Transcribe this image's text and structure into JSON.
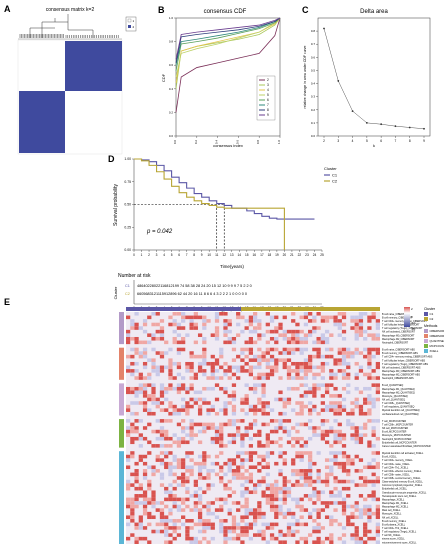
{
  "panels": {
    "A": {
      "letter": "A",
      "title": "consensus matrix k=2",
      "legend": [
        "1",
        "2"
      ]
    },
    "B": {
      "letter": "B",
      "title": "consensus CDF",
      "xlabel": "consensus index",
      "ylabel": "CDF",
      "xticks": [
        "0.0",
        "0.2",
        "0.4",
        "0.6",
        "0.8",
        "1.0"
      ],
      "yticks": [
        "0.0",
        "0.2",
        "0.4",
        "0.6",
        "0.8",
        "1.0"
      ],
      "legend": [
        "2",
        "3",
        "4",
        "5",
        "6",
        "7",
        "8",
        "9"
      ]
    },
    "C": {
      "letter": "C",
      "title": "Delta area",
      "xlabel": "k",
      "ylabel": "relative change in area under CDF curve"
    },
    "D": {
      "letter": "D",
      "ylabel": "Survival probability",
      "xlabel": "Time(years)",
      "pvalue": "p = 0.042",
      "legend_title": "Cluster",
      "legend": [
        "C1",
        "C2"
      ],
      "yticks": [
        "0.00",
        "0.25",
        "0.50",
        "0.75",
        "1.00"
      ],
      "risk_title": "Number at risk",
      "risk_ylabel": "Cluster",
      "risk_rows": [
        {
          "label": "C1",
          "text": "48640228022116812199 74 58 38 28 24 20 15 12 10 9 9 9 7 5 2 2 0"
        },
        {
          "label": "C2",
          "text": "6605683121115912896 62 44 20 16 11 8 6 6 4 3 2 2 2 1 0 0 0 0 0"
        }
      ]
    },
    "E": {
      "letter": "E",
      "legend": {
        "cluster_title": "Cluster",
        "clusters": [
          "C1",
          "C2"
        ],
        "methods_title": "Methods",
        "methods": [
          "CIBERSORT",
          "CIBERSORT-ABS",
          "QUANTISEQ",
          "MCPCOUNTER",
          "XCELL"
        ],
        "scale": [
          "2",
          "0",
          "-10",
          "-20"
        ]
      },
      "groups": [
        {
          "method": "CIBERSORT",
          "rows": [
            "B cell naive_CIBERSORT",
            "B cell memory_CIBERSORT",
            "T cell CD4+ memory resting_CIBERSORT",
            "T cell follicular helper_CIBERSORT",
            "T cell regulatory (Tregs)_CIBERSORT",
            "NK cell activated_CIBERSORT",
            "Macrophage M0_CIBERSORT",
            "Macrophage M2_CIBERSORT",
            "Neutrophil_CIBERSORT"
          ]
        },
        {
          "method": "CIBERSORT-ABS",
          "rows": [
            "B cell naive_CIBERSORT-ABS",
            "B cell memory_CIBERSORT-ABS",
            "T cell CD4+ memory resting_CIBERSORT-ABS",
            "T cell follicular helper_CIBERSORT-ABS",
            "T cell regulatory (Tregs)_CIBERSORT-ABS",
            "NK cell activated_CIBERSORT-ABS",
            "Macrophage M0_CIBERSORT-ABS",
            "Macrophage M2_CIBERSORT-ABS",
            "Neutrophil_CIBERSORT-ABS"
          ]
        },
        {
          "method": "QUANTISEQ",
          "rows": [
            "B cell_QUANTISEQ",
            "Macrophage M1_QUANTISEQ",
            "Macrophage M2_QUANTISEQ",
            "Monocyte_QUANTISEQ",
            "NK cell_QUANTISEQ",
            "T cell CD8+_QUANTISEQ",
            "T cell regulatory_QUANTISEQ",
            "Myeloid dendritic cell_QUANTISEQ",
            "uncharacterized cell_QUANTISEQ"
          ]
        },
        {
          "method": "MCPCOUNTER",
          "rows": [
            "T cell_MCPCOUNTER",
            "T cell CD8+_MCPCOUNTER",
            "NK cell_MCPCOUNTER",
            "B cell_MCPCOUNTER",
            "Monocyte_MCPCOUNTER",
            "Neutrophil_MCPCOUNTER",
            "Endothelial cell_MCPCOUNTER",
            "Cancer associated fibroblast_MCPCOUNTER"
          ]
        },
        {
          "method": "XCELL",
          "rows": [
            "Myeloid dendritic cell activated_XCELL",
            "B cell_XCELL",
            "T cell CD4+ memory_XCELL",
            "T cell CD4+ naive_XCELL",
            "T cell CD4+ Th1_XCELL",
            "T cell CD4+ effector memory_XCELL",
            "T cell CD8+ naive_XCELL",
            "T cell CD8+ central memory_XCELL",
            "Class-switched memory B cell_XCELL",
            "Common lymphoid progenitor_XCELL",
            "Endothelial cell_XCELL",
            "Granulocyte-monocyte progenitor_XCELL",
            "Hematopoietic stem cell_XCELL",
            "Macrophage_XCELL",
            "Macrophage M1_XCELL",
            "Macrophage M2_XCELL",
            "Mast cell_XCELL",
            "Monocyte_XCELL",
            "NK cell_XCELL",
            "B cell memory_XCELL",
            "B cell plasma_XCELL",
            "T cell CD4+ Th2_XCELL",
            "T cell regulatory (Tregs)_XCELL",
            "T cell NK_XCELL",
            "stroma score_XCELL",
            "microenvironment score_XCELL"
          ]
        }
      ]
    }
  },
  "colors": {
    "c1": "#5b57a6",
    "c2": "#b8a534",
    "consensus_blue": "#3f4a9e",
    "cibersort": "#b39ac8",
    "cibersort_abs": "#e3836a",
    "quantiseq": "#c8a9d4",
    "mcpcounter": "#7cb342",
    "xcell": "#5bb6d6",
    "cdf": [
      "#7a2e57",
      "#a9c75a",
      "#e3c44b",
      "#bdd26a",
      "#5aa05a",
      "#2f8a7c",
      "#2c3e7a",
      "#6a3d8f"
    ]
  },
  "chart_data": [
    {
      "type": "heatmap",
      "title": "consensus matrix k=2",
      "categories": [
        "1",
        "2"
      ],
      "values": [
        [
          1,
          0
        ],
        [
          0,
          1
        ]
      ]
    },
    {
      "type": "line",
      "title": "consensus CDF",
      "xlabel": "consensus index",
      "ylabel": "CDF",
      "xlim": [
        0,
        1
      ],
      "ylim": [
        0,
        1
      ],
      "x": [
        0,
        0.05,
        0.2,
        0.4,
        0.6,
        0.8,
        0.95,
        1
      ],
      "series": [
        {
          "name": "2",
          "values": [
            0.2,
            0.5,
            0.58,
            0.62,
            0.66,
            0.7,
            0.85,
            1.0
          ]
        },
        {
          "name": "3",
          "values": [
            0.4,
            0.72,
            0.76,
            0.79,
            0.82,
            0.86,
            0.94,
            1.0
          ]
        },
        {
          "name": "4",
          "values": [
            0.45,
            0.72,
            0.76,
            0.8,
            0.84,
            0.88,
            0.95,
            1.0
          ]
        },
        {
          "name": "5",
          "values": [
            0.5,
            0.7,
            0.74,
            0.78,
            0.83,
            0.88,
            0.96,
            1.0
          ]
        },
        {
          "name": "6",
          "values": [
            0.55,
            0.78,
            0.8,
            0.83,
            0.87,
            0.91,
            0.96,
            1.0
          ]
        },
        {
          "name": "7",
          "values": [
            0.6,
            0.8,
            0.82,
            0.85,
            0.88,
            0.92,
            0.97,
            1.0
          ]
        },
        {
          "name": "8",
          "values": [
            0.62,
            0.84,
            0.86,
            0.88,
            0.9,
            0.93,
            0.97,
            1.0
          ]
        },
        {
          "name": "9",
          "values": [
            0.65,
            0.86,
            0.88,
            0.9,
            0.92,
            0.94,
            0.98,
            1.0
          ]
        }
      ]
    },
    {
      "type": "line",
      "title": "Delta area",
      "xlabel": "k",
      "ylabel": "relative change in area under CDF curve",
      "x": [
        2,
        3,
        4,
        5,
        6,
        7,
        8,
        9
      ],
      "xlim": [
        2,
        9
      ],
      "ylim": [
        0,
        0.9
      ],
      "yticks": [
        0.0,
        0.1,
        0.2,
        0.3,
        0.4,
        0.5,
        0.6,
        0.7,
        0.8
      ],
      "series": [
        {
          "values": [
            0.82,
            0.42,
            0.19,
            0.1,
            0.09,
            0.075,
            0.065,
            0.055
          ]
        }
      ]
    },
    {
      "type": "line",
      "xlabel": "Time(years)",
      "ylabel": "Survival probability",
      "xlim": [
        0,
        25
      ],
      "ylim": [
        0,
        1
      ],
      "xticks": [
        0,
        1,
        2,
        3,
        4,
        5,
        6,
        7,
        8,
        9,
        10,
        11,
        12,
        13,
        14,
        15,
        16,
        17,
        18,
        19,
        20,
        21,
        22,
        23,
        24,
        25
      ],
      "series": [
        {
          "name": "C1",
          "x": [
            0,
            1,
            2,
            3,
            4,
            5,
            6,
            7,
            8,
            9,
            10,
            11,
            12,
            13,
            15,
            16,
            17,
            18,
            19,
            20,
            21,
            22,
            23,
            24
          ],
          "values": [
            1.0,
            0.99,
            0.97,
            0.93,
            0.87,
            0.8,
            0.74,
            0.68,
            0.62,
            0.58,
            0.54,
            0.51,
            0.49,
            0.46,
            0.43,
            0.4,
            0.37,
            0.35,
            0.34,
            0.34,
            0.34,
            0.34,
            0.34,
            0.34
          ]
        },
        {
          "name": "C2",
          "x": [
            0,
            1,
            2,
            3,
            4,
            5,
            6,
            7,
            8,
            9,
            10,
            11,
            12,
            13,
            15,
            16,
            17,
            18,
            19,
            20
          ],
          "values": [
            1.0,
            0.98,
            0.93,
            0.86,
            0.78,
            0.7,
            0.63,
            0.58,
            0.54,
            0.51,
            0.49,
            0.47,
            0.46,
            0.46,
            0.46,
            0.46,
            0.46,
            0.46,
            0.46,
            0.0
          ]
        }
      ],
      "annotations": [
        "p = 0.042"
      ]
    }
  ]
}
